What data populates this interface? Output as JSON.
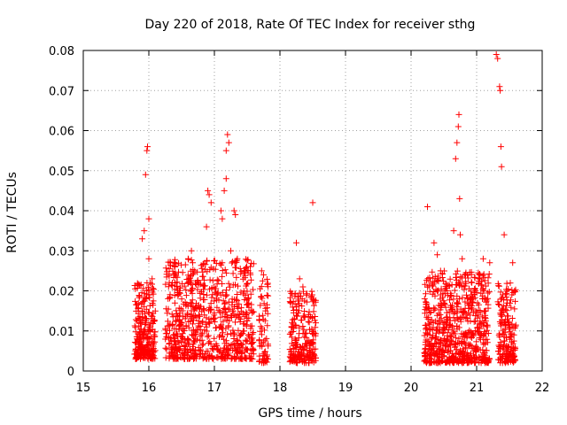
{
  "chart_data": {
    "type": "scatter",
    "title": "Day 220 of 2018, Rate Of TEC Index for receiver sthg",
    "xlabel": "GPS time / hours",
    "ylabel": "ROTI / TECUs",
    "xlim": [
      15,
      22
    ],
    "ylim": [
      0,
      0.08
    ],
    "x_ticks": [
      15,
      16,
      17,
      18,
      19,
      20,
      21,
      22
    ],
    "y_ticks": [
      0,
      0.01,
      0.02,
      0.03,
      0.04,
      0.05,
      0.06,
      0.07,
      0.08
    ],
    "x_tick_labels": [
      "15",
      "16",
      "17",
      "18",
      "19",
      "20",
      "21",
      "22"
    ],
    "y_tick_labels": [
      "0",
      "0.01",
      "0.02",
      "0.03",
      "0.04",
      "0.05",
      "0.06",
      "0.07",
      "0.08"
    ],
    "grid": true,
    "marker": "+",
    "color": "#ff0000",
    "series": [
      {
        "name": "ROTI",
        "points": [
          [
            15.85,
            0.008
          ],
          [
            15.87,
            0.012
          ],
          [
            15.9,
            0.015
          ],
          [
            15.92,
            0.01
          ],
          [
            15.95,
            0.018
          ],
          [
            15.9,
            0.033
          ],
          [
            15.93,
            0.035
          ],
          [
            15.95,
            0.049
          ],
          [
            15.97,
            0.055
          ],
          [
            15.98,
            0.056
          ],
          [
            16.0,
            0.038
          ],
          [
            16.0,
            0.028
          ],
          [
            16.02,
            0.022
          ],
          [
            16.05,
            0.023
          ],
          [
            16.4,
            0.022
          ],
          [
            16.6,
            0.028
          ],
          [
            16.65,
            0.03
          ],
          [
            16.7,
            0.025
          ],
          [
            16.9,
            0.045
          ],
          [
            16.92,
            0.044
          ],
          [
            16.95,
            0.042
          ],
          [
            16.88,
            0.036
          ],
          [
            17.1,
            0.04
          ],
          [
            17.12,
            0.038
          ],
          [
            17.15,
            0.045
          ],
          [
            17.18,
            0.048
          ],
          [
            17.2,
            0.059
          ],
          [
            17.22,
            0.057
          ],
          [
            17.18,
            0.055
          ],
          [
            17.3,
            0.04
          ],
          [
            17.32,
            0.039
          ],
          [
            17.25,
            0.03
          ],
          [
            17.35,
            0.028
          ],
          [
            17.72,
            0.025
          ],
          [
            17.75,
            0.024
          ],
          [
            17.78,
            0.015
          ],
          [
            18.25,
            0.032
          ],
          [
            18.3,
            0.023
          ],
          [
            18.35,
            0.021
          ],
          [
            18.5,
            0.042
          ],
          [
            20.25,
            0.041
          ],
          [
            20.35,
            0.032
          ],
          [
            20.4,
            0.029
          ],
          [
            20.45,
            0.025
          ],
          [
            20.55,
            0.02
          ],
          [
            20.65,
            0.035
          ],
          [
            20.68,
            0.053
          ],
          [
            20.7,
            0.057
          ],
          [
            20.72,
            0.061
          ],
          [
            20.73,
            0.064
          ],
          [
            20.74,
            0.043
          ],
          [
            20.75,
            0.034
          ],
          [
            20.78,
            0.028
          ],
          [
            21.1,
            0.028
          ],
          [
            21.2,
            0.027
          ],
          [
            21.3,
            0.079
          ],
          [
            21.32,
            0.078
          ],
          [
            21.35,
            0.071
          ],
          [
            21.36,
            0.07
          ],
          [
            21.37,
            0.056
          ],
          [
            21.38,
            0.051
          ],
          [
            21.42,
            0.034
          ],
          [
            21.55,
            0.027
          ]
        ]
      }
    ],
    "clusters": [
      {
        "x_start": 15.78,
        "x_end": 16.1,
        "y_min": 0.003,
        "y_max": 0.022,
        "count": 260
      },
      {
        "x_start": 16.25,
        "x_end": 17.6,
        "y_min": 0.003,
        "y_max": 0.028,
        "count": 750
      },
      {
        "x_start": 17.68,
        "x_end": 17.82,
        "y_min": 0.002,
        "y_max": 0.025,
        "count": 60
      },
      {
        "x_start": 18.15,
        "x_end": 18.55,
        "y_min": 0.002,
        "y_max": 0.02,
        "count": 220
      },
      {
        "x_start": 20.2,
        "x_end": 21.2,
        "y_min": 0.002,
        "y_max": 0.025,
        "count": 700
      },
      {
        "x_start": 21.32,
        "x_end": 21.6,
        "y_min": 0.002,
        "y_max": 0.022,
        "count": 170
      }
    ]
  }
}
